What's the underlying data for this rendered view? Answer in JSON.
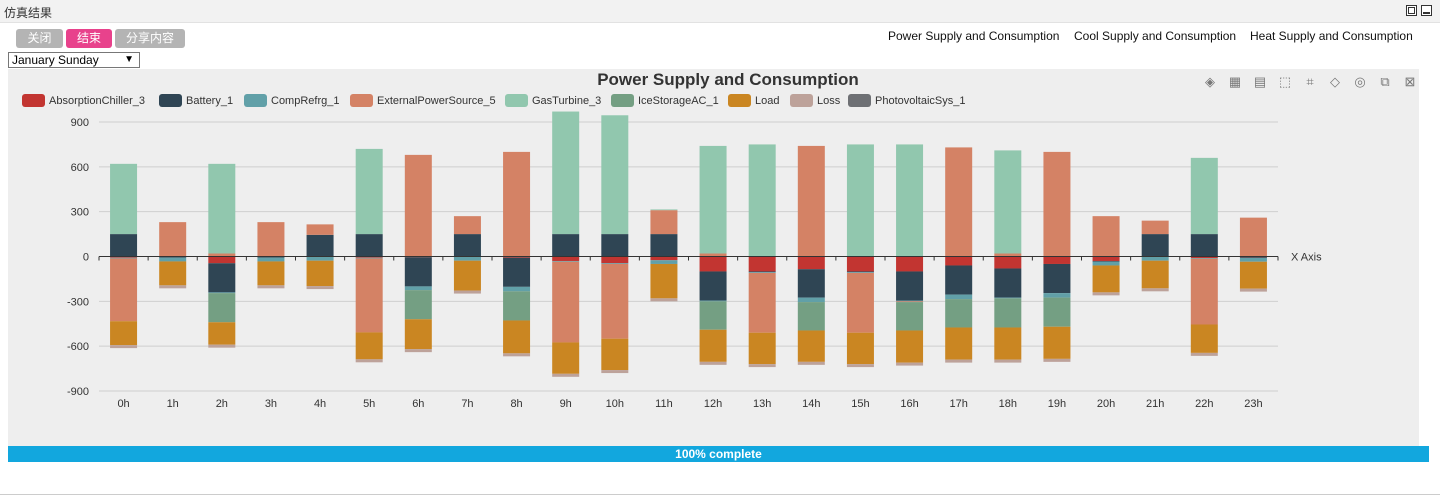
{
  "window": {
    "title": "仿真结果"
  },
  "toolbar": {
    "close_label": "关闭",
    "end_label": "结束",
    "share_label": "分享内容"
  },
  "tabs": [
    "Power Supply and Consumption",
    "Cool Supply and Consumption",
    "Heat Supply and Consumption"
  ],
  "day_select": {
    "value": "January Sunday"
  },
  "toolbox_icons": [
    "stack-icon",
    "grid-icon",
    "data-view-icon",
    "zoom-icon",
    "lasso-icon",
    "restore-icon",
    "reset-icon",
    "compare-icon",
    "clear-icon"
  ],
  "progress": {
    "label": "100% complete",
    "percent": 100
  },
  "colors": {
    "AbsorptionChiller_3": "#c23531",
    "Battery_1": "#2f4554",
    "CompRefrg_1": "#61a0a8",
    "ExternalPowerSource_5": "#d48265",
    "GasTurbine_3": "#91c7ae",
    "IceStorageAC_1": "#749f83",
    "Load": "#ca8622",
    "Loss": "#bda29a",
    "PhotovoltaicSys_1": "#6e7074"
  },
  "chart_data": {
    "type": "bar",
    "stacked": true,
    "title": "Power Supply and Consumption",
    "xlabel": "X Axis",
    "ylabel": "",
    "ylim": [
      -900,
      900
    ],
    "y_ticks": [
      900,
      600,
      300,
      0,
      -300,
      -600,
      -900
    ],
    "grid": true,
    "legend_position": "top-left",
    "categories": [
      "0h",
      "1h",
      "2h",
      "3h",
      "4h",
      "5h",
      "6h",
      "7h",
      "8h",
      "9h",
      "10h",
      "11h",
      "12h",
      "13h",
      "14h",
      "15h",
      "16h",
      "17h",
      "18h",
      "19h",
      "20h",
      "21h",
      "22h",
      "23h"
    ],
    "series": [
      {
        "name": "AbsorptionChiller_3",
        "values": [
          -8,
          -3,
          -45,
          -3,
          -3,
          -8,
          -5,
          -3,
          -8,
          -30,
          -45,
          -25,
          -100,
          -100,
          -85,
          -100,
          -100,
          -60,
          -80,
          -50,
          -30,
          -3,
          -10,
          -5
        ]
      },
      {
        "name": "Battery_1",
        "values": [
          150,
          -5,
          -195,
          -5,
          145,
          150,
          -195,
          150,
          -195,
          150,
          150,
          150,
          -195,
          -5,
          -190,
          -5,
          -195,
          -195,
          -195,
          -195,
          -5,
          150,
          150,
          -5
        ]
      },
      {
        "name": "CompRefrg_1",
        "values": [
          -5,
          -25,
          -5,
          -25,
          -25,
          -5,
          -25,
          -25,
          -30,
          -5,
          -5,
          -25,
          -5,
          -5,
          -30,
          -5,
          -5,
          -30,
          -5,
          -30,
          -25,
          -25,
          -5,
          -25
        ]
      },
      {
        "name": "ExternalPowerSource_5",
        "values": [
          -420,
          230,
          20,
          230,
          70,
          -495,
          680,
          120,
          700,
          -540,
          -500,
          160,
          20,
          -400,
          740,
          -400,
          -5,
          730,
          20,
          700,
          270,
          90,
          -440,
          260
        ]
      },
      {
        "name": "GasTurbine_3",
        "values": [
          470,
          0,
          600,
          0,
          0,
          570,
          0,
          0,
          0,
          820,
          795,
          5,
          720,
          750,
          0,
          750,
          750,
          0,
          690,
          0,
          0,
          0,
          510,
          0
        ]
      },
      {
        "name": "IceStorageAC_1",
        "values": [
          0,
          0,
          -195,
          0,
          0,
          0,
          -195,
          0,
          -195,
          0,
          0,
          0,
          -190,
          0,
          -190,
          0,
          -190,
          -190,
          -195,
          -195,
          0,
          0,
          0,
          0
        ]
      },
      {
        "name": "Load",
        "values": [
          -160,
          -160,
          -150,
          -160,
          -170,
          -180,
          -200,
          -200,
          -220,
          -210,
          -210,
          -230,
          -215,
          -210,
          -210,
          -210,
          -215,
          -215,
          -215,
          -215,
          -180,
          -185,
          -190,
          -180
        ]
      },
      {
        "name": "Loss",
        "values": [
          -20,
          -20,
          -20,
          -20,
          -20,
          -20,
          -20,
          -20,
          -20,
          -20,
          -20,
          -20,
          -20,
          -20,
          -20,
          -20,
          -20,
          -20,
          -20,
          -20,
          -20,
          -20,
          -20,
          -20
        ]
      },
      {
        "name": "PhotovoltaicSys_1",
        "values": [
          0,
          0,
          0,
          0,
          0,
          0,
          0,
          0,
          0,
          0,
          0,
          0,
          0,
          0,
          0,
          0,
          0,
          0,
          0,
          0,
          0,
          0,
          0,
          0
        ]
      }
    ]
  }
}
